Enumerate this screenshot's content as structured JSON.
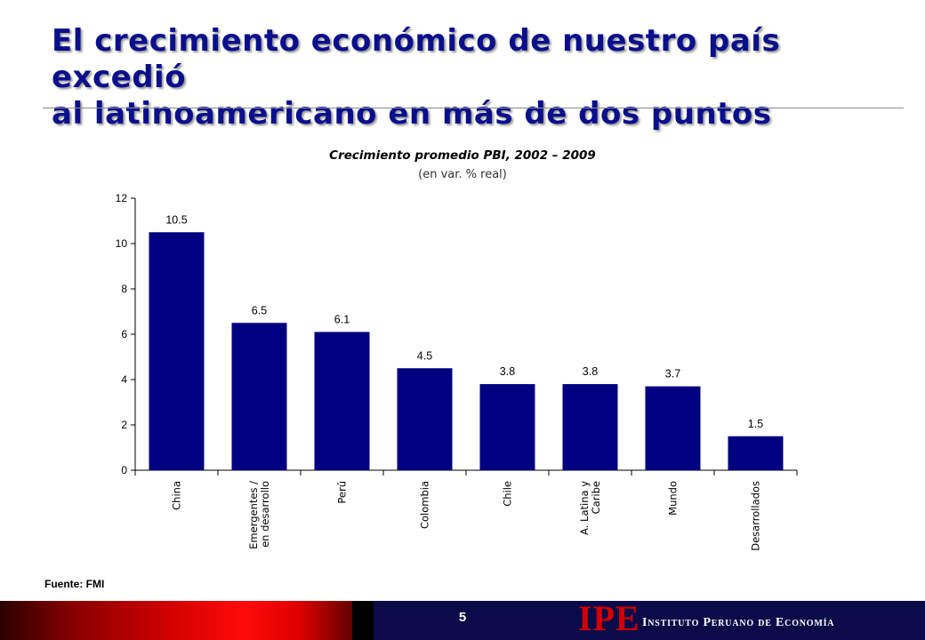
{
  "slide": {
    "title_line1": "El crecimiento económico de nuestro país excedió",
    "title_line2": "al latinoamericano en más de dos puntos",
    "source": "Fuente: FMI",
    "page_number": "5",
    "logo": "IPE",
    "institute_name": "Instituto Peruano de Economía"
  },
  "colors": {
    "title": "#0a0f8c",
    "bar": "#000080",
    "footer_red": "#d00000",
    "footer_navy": "#0b0b4a"
  },
  "chart_data": {
    "type": "bar",
    "title": "Crecimiento promedio PBI, 2002 – 2009",
    "subtitle": "(en var. % real)",
    "categories": [
      [
        "China"
      ],
      [
        "Emergentes /",
        "en desarrollo"
      ],
      [
        "Perú"
      ],
      [
        "Colombia"
      ],
      [
        "Chile"
      ],
      [
        "A. Latina y",
        "Caribe"
      ],
      [
        "Mundo"
      ],
      [
        "Desarrollados"
      ]
    ],
    "values": [
      10.5,
      6.5,
      6.1,
      4.5,
      3.8,
      3.8,
      3.7,
      1.5
    ],
    "value_labels": [
      "10.5",
      "6.5",
      "6.1",
      "4.5",
      "3.8",
      "3.8",
      "3.7",
      "1.5"
    ],
    "yticks": [
      0,
      2,
      4,
      6,
      8,
      10,
      12
    ],
    "ylim": [
      0,
      12
    ],
    "grid": false,
    "legend": "none"
  }
}
